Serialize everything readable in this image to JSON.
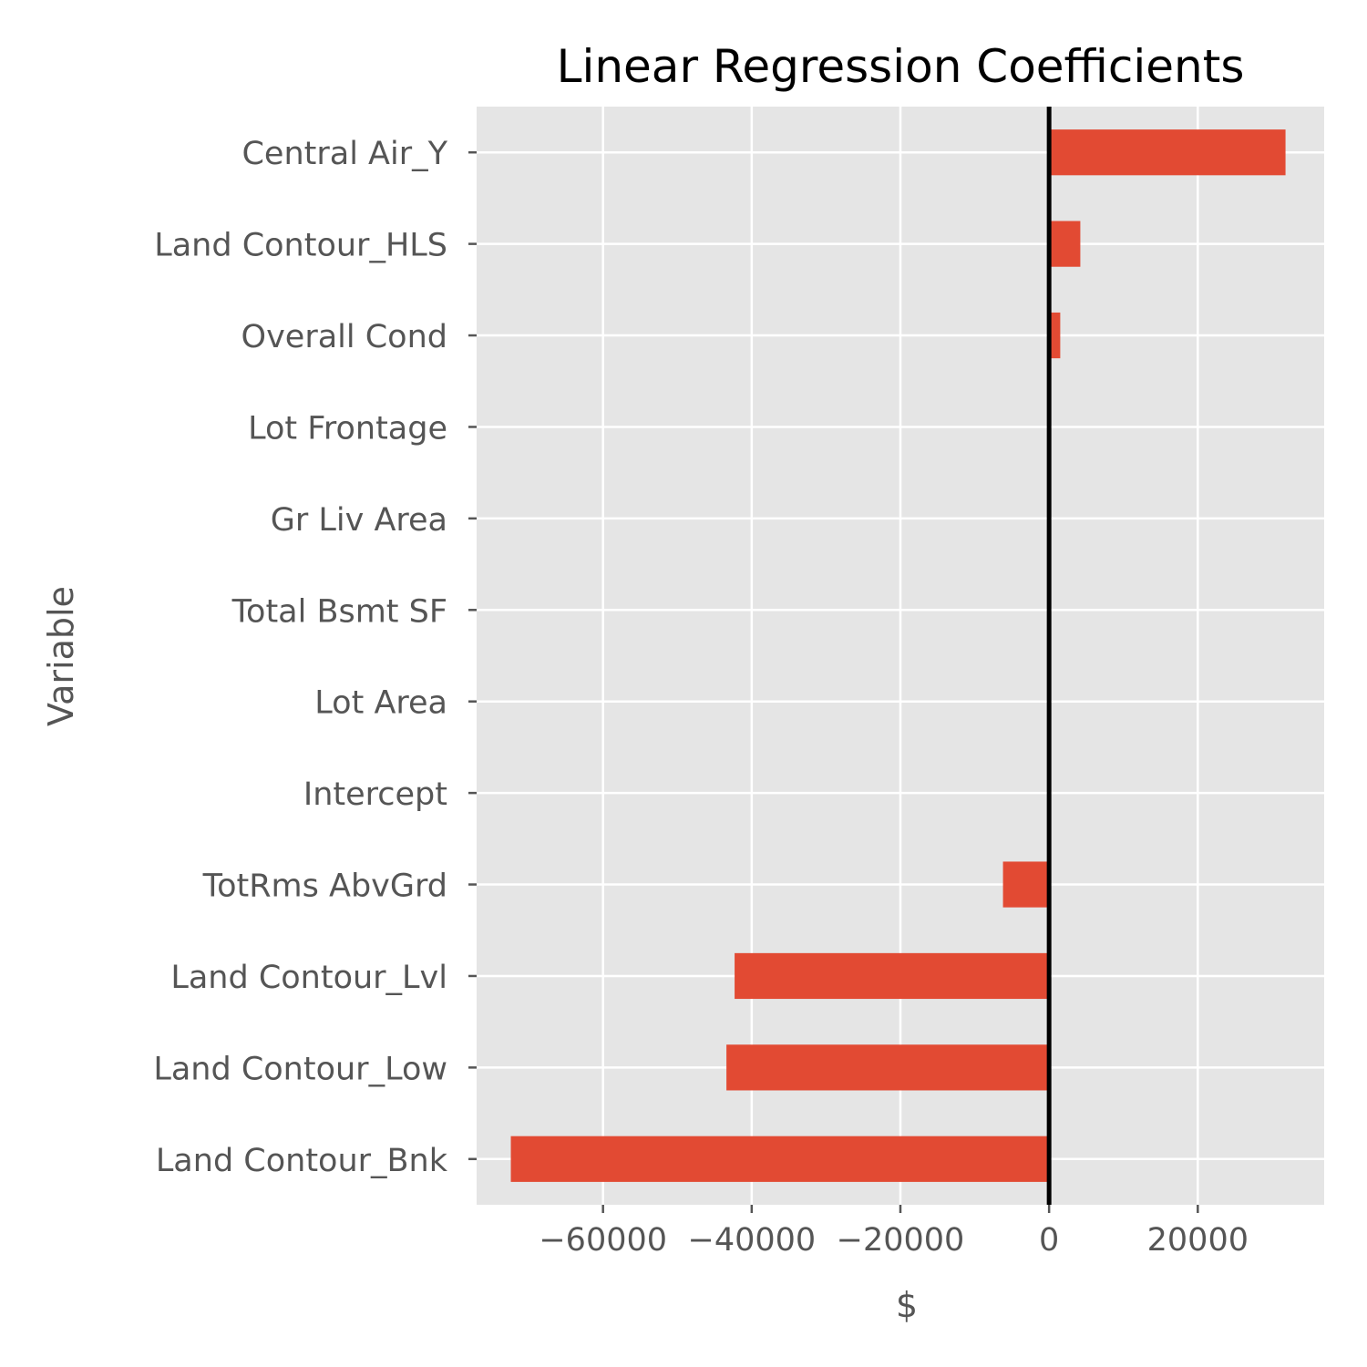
{
  "chart_data": {
    "type": "bar",
    "orientation": "horizontal",
    "title": "Linear Regression Coefficients",
    "xlabel": "$",
    "ylabel": "Variable",
    "categories": [
      "Central Air_Y",
      "Land Contour_HLS",
      "Overall Cond",
      "Lot Frontage",
      "Gr Liv Area",
      "Total Bsmt SF",
      "Lot Area",
      "Intercept",
      "TotRms AbvGrd",
      "Land Contour_Lvl",
      "Land Contour_Low",
      "Land Contour_Bnk"
    ],
    "values": [
      31800,
      4200,
      1500,
      0,
      0,
      0,
      0,
      0,
      -6200,
      -42300,
      -43400,
      -72400
    ],
    "xlim": [
      -77000,
      37000
    ],
    "xticks": [
      -60000,
      -40000,
      -20000,
      0,
      20000
    ],
    "xtick_labels": [
      "−60000",
      "−40000",
      "−20000",
      "0",
      "20000"
    ],
    "grid": true,
    "zero_line": true,
    "colors": {
      "bar": "#E24A33",
      "background": "#E5E5E5",
      "grid": "#FFFFFF",
      "zero_line": "#000000"
    }
  }
}
